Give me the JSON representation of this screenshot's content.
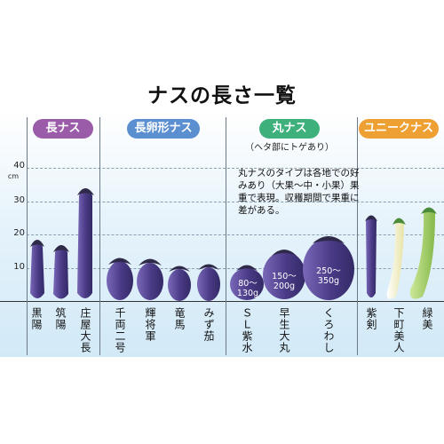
{
  "title": "ナスの長さ一覧",
  "axis": {
    "unit": "cm",
    "ticks": [
      "10",
      "20",
      "30",
      "40"
    ]
  },
  "groups": [
    {
      "label": "長ナス",
      "color": "#9a5ba8"
    },
    {
      "label": "長卵形ナス",
      "color": "#5b8fd0"
    },
    {
      "label": "丸ナス",
      "color": "#3db07b",
      "subtitle": "（ヘタ部にトゲあり）",
      "note": "丸ナスのタイプは各地での好みあり（大果〜中・小果）果重で表現。収穫期間で果重に差がある。"
    },
    {
      "label": "ユニークナス",
      "color": "#eea032"
    }
  ],
  "varieties": [
    {
      "name": "黒陽",
      "length_cm": 20
    },
    {
      "name": "筑陽",
      "length_cm": 18
    },
    {
      "name": "庄屋大長",
      "length_cm": 35
    },
    {
      "name": "千両二号",
      "length_cm": 15
    },
    {
      "name": "輝将軍",
      "length_cm": 14
    },
    {
      "name": "竜馬",
      "length_cm": 12
    },
    {
      "name": "みず茄",
      "length_cm": 13
    },
    {
      "name": "ＳＬ紫水",
      "weight": "80〜130g"
    },
    {
      "name": "早生大丸",
      "weight": "150〜200g"
    },
    {
      "name": "くろわし",
      "weight": "250〜350g"
    },
    {
      "name": "紫剣",
      "length_cm": 27
    },
    {
      "name": "下町美人",
      "length_cm": 26
    },
    {
      "name": "緑美",
      "length_cm": 30
    }
  ],
  "colors": {
    "eggplant": "#4a3a86",
    "eggplant_light": "#7a68b8",
    "calyx": "#2f2a4a",
    "white_body": "#f3f1c2",
    "green_body": "#a9d26b",
    "green_calyx": "#4b8c3a"
  }
}
